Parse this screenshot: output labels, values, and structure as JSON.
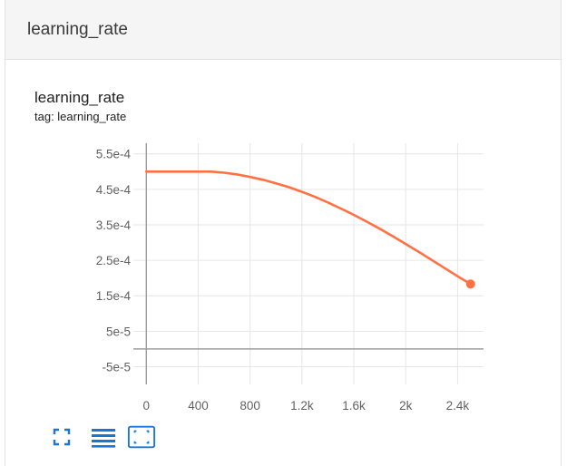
{
  "header": {
    "title": "learning_rate"
  },
  "chart_card": {
    "title": "learning_rate",
    "subtitle": "tag: learning_rate"
  },
  "colors": {
    "series": "#ff7043",
    "toolbar_icon": "#1976d2",
    "grid": "#e6e6e6",
    "axis": "#9e9e9e"
  },
  "toolbar": {
    "icons": [
      "fullscreen-icon",
      "list-icon",
      "fit-domain-icon"
    ]
  },
  "chart_data": {
    "type": "line",
    "title": "learning_rate",
    "subtitle": "tag: learning_rate",
    "xlabel": "",
    "ylabel": "",
    "xlim": [
      -100,
      2600
    ],
    "ylim": [
      -0.0001,
      0.00058
    ],
    "x_ticks": [
      {
        "value": 0,
        "label": "0"
      },
      {
        "value": 400,
        "label": "400"
      },
      {
        "value": 800,
        "label": "800"
      },
      {
        "value": 1200,
        "label": "1.2k"
      },
      {
        "value": 1600,
        "label": "1.6k"
      },
      {
        "value": 2000,
        "label": "2k"
      },
      {
        "value": 2400,
        "label": "2.4k"
      }
    ],
    "y_ticks": [
      {
        "value": 0.00055,
        "label": "5.5e-4"
      },
      {
        "value": 0.00045,
        "label": "4.5e-4"
      },
      {
        "value": 0.00035,
        "label": "3.5e-4"
      },
      {
        "value": 0.00025,
        "label": "2.5e-4"
      },
      {
        "value": 0.00015,
        "label": "1.5e-4"
      },
      {
        "value": 5e-05,
        "label": "5e-5"
      },
      {
        "value": -5e-05,
        "label": "-5e-5"
      }
    ],
    "grid": true,
    "legend": "none",
    "series": [
      {
        "x": [
          0,
          100,
          200,
          300,
          400,
          500,
          600,
          700,
          800,
          900,
          1000,
          1100,
          1200,
          1300,
          1400,
          1500,
          1600,
          1700,
          1800,
          1900,
          2000,
          2100,
          2200,
          2300,
          2400,
          2500
        ],
        "y": [
          0.0005,
          0.0005,
          0.0005,
          0.0005,
          0.0005,
          0.0005,
          0.000497,
          0.000492,
          0.000485,
          0.000477,
          0.000467,
          0.000456,
          0.000443,
          0.000429,
          0.000413,
          0.000396,
          0.000378,
          0.000359,
          0.000339,
          0.000318,
          0.000296,
          0.000274,
          0.000251,
          0.000228,
          0.000205,
          0.000183
        ]
      }
    ]
  }
}
